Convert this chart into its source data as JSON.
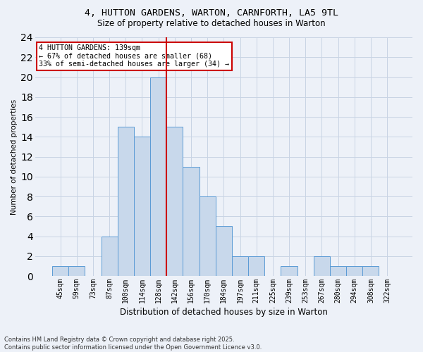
{
  "title1": "4, HUTTON GARDENS, WARTON, CARNFORTH, LA5 9TL",
  "title2": "Size of property relative to detached houses in Warton",
  "xlabel": "Distribution of detached houses by size in Warton",
  "ylabel": "Number of detached properties",
  "categories": [
    "45sqm",
    "59sqm",
    "73sqm",
    "87sqm",
    "100sqm",
    "114sqm",
    "128sqm",
    "142sqm",
    "156sqm",
    "170sqm",
    "184sqm",
    "197sqm",
    "211sqm",
    "225sqm",
    "239sqm",
    "253sqm",
    "267sqm",
    "280sqm",
    "294sqm",
    "308sqm",
    "322sqm"
  ],
  "values": [
    1,
    1,
    0,
    4,
    15,
    14,
    20,
    15,
    11,
    8,
    5,
    2,
    2,
    0,
    1,
    0,
    2,
    1,
    1,
    1,
    0
  ],
  "bar_color": "#c8d8eb",
  "bar_edge_color": "#5b9bd5",
  "grid_color": "#c8d4e4",
  "bg_color": "#edf1f8",
  "vline_color": "#cc0000",
  "annotation_line1": "4 HUTTON GARDENS: 139sqm",
  "annotation_line2": "← 67% of detached houses are smaller (68)",
  "annotation_line3": "33% of semi-detached houses are larger (34) →",
  "annotation_box_color": "#ffffff",
  "annotation_box_edge": "#cc0000",
  "footnote": "Contains HM Land Registry data © Crown copyright and database right 2025.\nContains public sector information licensed under the Open Government Licence v3.0.",
  "ylim": [
    0,
    24
  ],
  "yticks": [
    0,
    2,
    4,
    6,
    8,
    10,
    12,
    14,
    16,
    18,
    20,
    22,
    24
  ],
  "title1_fontsize": 9.5,
  "title2_fontsize": 8.5,
  "xlabel_fontsize": 8.5,
  "ylabel_fontsize": 7.5,
  "tick_fontsize": 7,
  "footnote_fontsize": 6
}
